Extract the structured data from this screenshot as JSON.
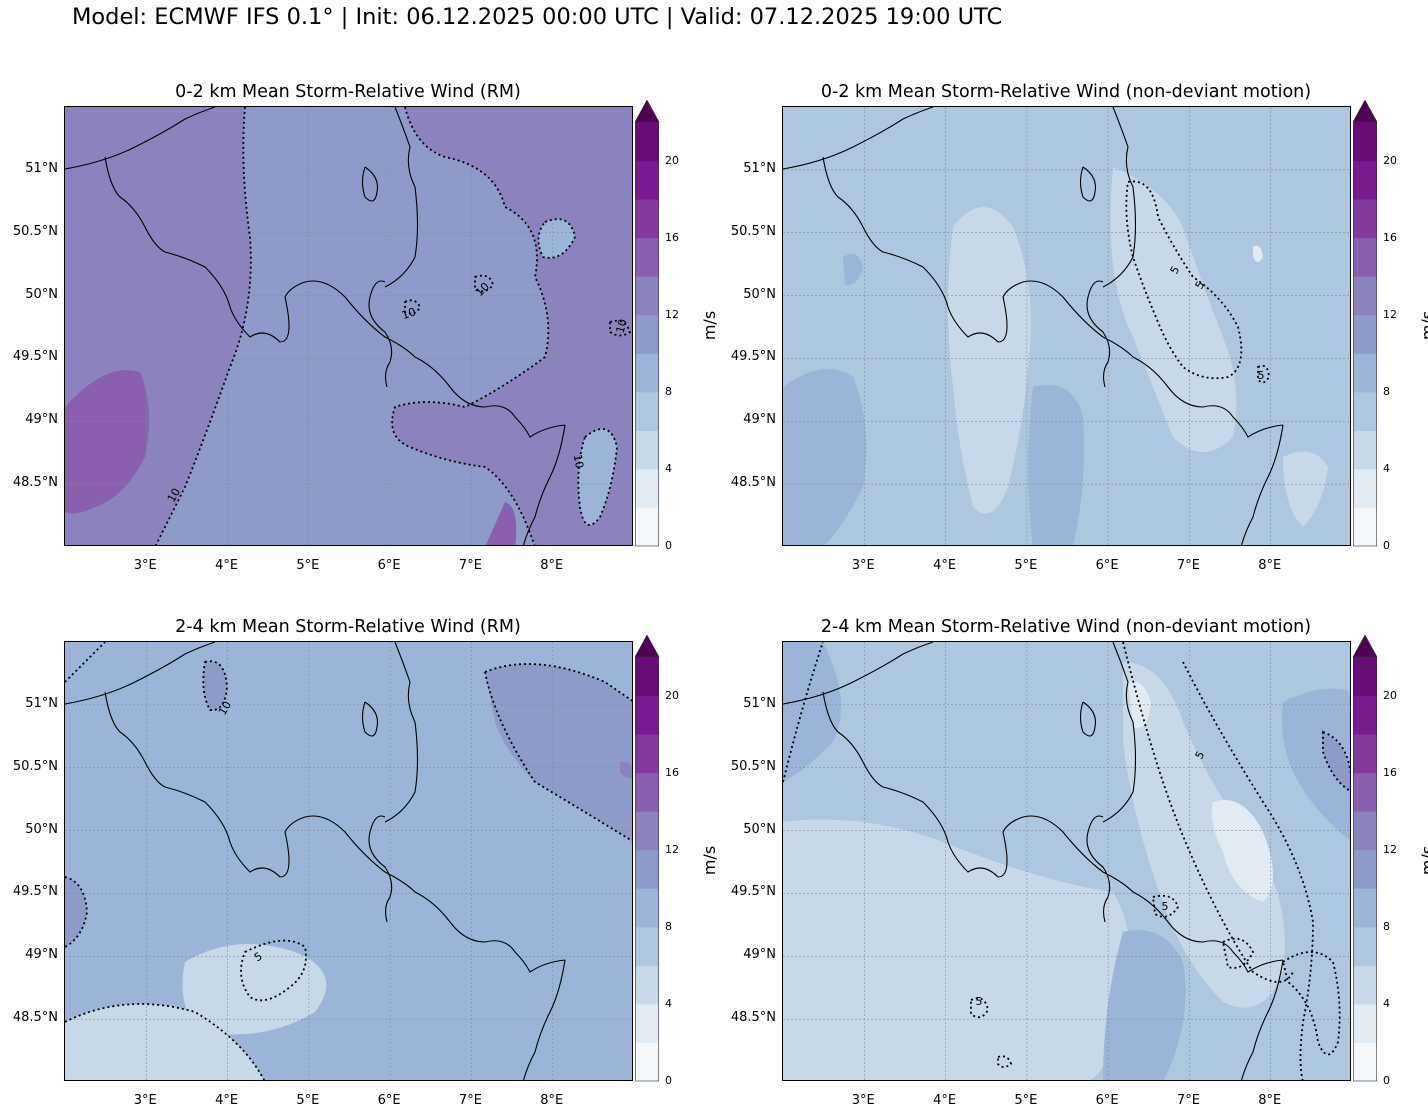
{
  "figure": {
    "title": "Model: ECMWF IFS 0.1° | Init: 06.12.2025 00:00 UTC | Valid: 07.12.2025 19:00 UTC"
  },
  "axes": {
    "lat_labels": [
      "51°N",
      "50.5°N",
      "50°N",
      "49.5°N",
      "49°N",
      "48.5°N"
    ],
    "lon_labels": [
      "3°E",
      "4°E",
      "5°E",
      "6°E",
      "7°E",
      "8°E"
    ]
  },
  "colorbar": {
    "ticks": [
      "0",
      "4",
      "8",
      "12",
      "16",
      "20"
    ],
    "unit": "m/s",
    "colors": [
      "#f3f7fa",
      "#e1ebf3",
      "#c7d8e8",
      "#afc6df",
      "#9bb4d8",
      "#8e9bc9",
      "#8c83be",
      "#8a5fb0",
      "#84399f",
      "#7a1a8f",
      "#6b0b78",
      "#4f0455"
    ]
  },
  "panels": [
    {
      "title": "0-2 km Mean Storm-Relative Wind (RM)",
      "contour_labels": [
        "10",
        "10",
        "10",
        "10",
        "10"
      ]
    },
    {
      "title": "0-2 km Mean Storm-Relative Wind (non-deviant motion)",
      "contour_labels": [
        "5",
        "5",
        "5"
      ]
    },
    {
      "title": "2-4 km Mean Storm-Relative Wind (RM)",
      "contour_labels": [
        "10",
        "5"
      ]
    },
    {
      "title": "2-4 km Mean Storm-Relative Wind (non-deviant motion)",
      "contour_labels": [
        "5",
        "5",
        "5"
      ]
    }
  ]
}
